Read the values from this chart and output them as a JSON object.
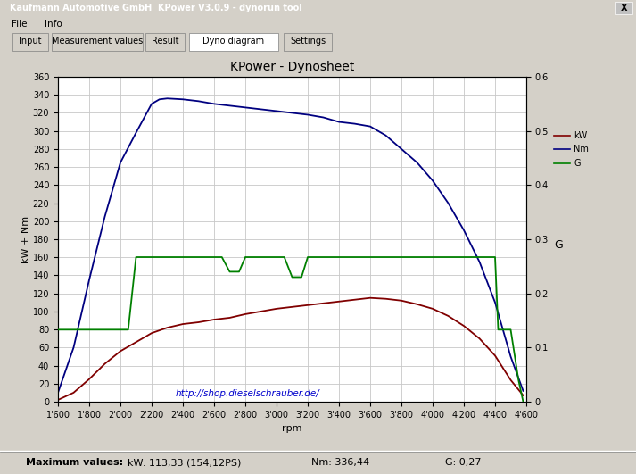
{
  "title": "KPower - Dynosheet",
  "xlabel": "rpm",
  "ylabel_left": "kW + Nm",
  "ylabel_right": "G",
  "url_text": "http://shop.dieselschrauber.de/",
  "window_title": "Kaufmann Automotive GmbH  KPower V3.0.9 - dynorun tool",
  "ylim_left": [
    0,
    360
  ],
  "ylim_right": [
    0,
    0.6
  ],
  "xlim": [
    1600,
    4600
  ],
  "xtick_labels": [
    "1'600",
    "1'800",
    "2'000",
    "2'200",
    "2'400",
    "2'600",
    "2'800",
    "3'000",
    "3'200",
    "3'400",
    "3'600",
    "3'800",
    "4'000",
    "4'200",
    "4'400",
    "4'600"
  ],
  "xtick_values": [
    1600,
    1800,
    2000,
    2200,
    2400,
    2600,
    2800,
    3000,
    3200,
    3400,
    3600,
    3800,
    4000,
    4200,
    4400,
    4600
  ],
  "ytick_left": [
    0,
    20,
    40,
    60,
    80,
    100,
    120,
    140,
    160,
    180,
    200,
    220,
    240,
    260,
    280,
    300,
    320,
    340,
    360
  ],
  "ytick_right": [
    0,
    0.1,
    0.2,
    0.3,
    0.4,
    0.5,
    0.6
  ],
  "bg_color": "#d4d0c8",
  "plot_bg_color": "#ffffff",
  "inner_bg": "#f0f0f0",
  "grid_color": "#c8c8c8",
  "nm_color": "#000080",
  "kw_color": "#800000",
  "g_color": "#008000",
  "legend_bg": "#d4d0c8",
  "titlebar_color": "#0a246a",
  "nm_rpm": [
    1600,
    1700,
    1800,
    1900,
    2000,
    2100,
    2200,
    2250,
    2300,
    2400,
    2500,
    2600,
    2700,
    2800,
    2900,
    3000,
    3100,
    3200,
    3300,
    3400,
    3500,
    3600,
    3700,
    3800,
    3900,
    4000,
    4100,
    4200,
    4300,
    4400,
    4500,
    4580
  ],
  "nm_vals": [
    10,
    60,
    135,
    205,
    265,
    298,
    330,
    335,
    336,
    335,
    333,
    330,
    328,
    326,
    324,
    322,
    320,
    318,
    315,
    310,
    308,
    305,
    295,
    280,
    265,
    245,
    220,
    190,
    155,
    110,
    50,
    12
  ],
  "kw_rpm": [
    1600,
    1700,
    1800,
    1900,
    2000,
    2100,
    2200,
    2300,
    2400,
    2500,
    2600,
    2700,
    2800,
    2900,
    3000,
    3100,
    3200,
    3300,
    3400,
    3500,
    3600,
    3700,
    3800,
    3900,
    4000,
    4100,
    4200,
    4300,
    4400,
    4500,
    4580
  ],
  "kw_vals": [
    2,
    10,
    25,
    42,
    56,
    66,
    76,
    82,
    86,
    88,
    91,
    93,
    97,
    100,
    103,
    105,
    107,
    109,
    111,
    113,
    115,
    114,
    112,
    108,
    103,
    95,
    84,
    70,
    51,
    24,
    7
  ],
  "g_rpm_detail": [
    1600,
    1700,
    1800,
    1900,
    2000,
    2050,
    2100,
    2150,
    2200,
    2250,
    2300,
    2350,
    2400,
    2500,
    2600,
    2650,
    2700,
    2720,
    2740,
    2760,
    2800,
    2850,
    2900,
    3000,
    3050,
    3100,
    3120,
    3140,
    3160,
    3200,
    3250,
    3300,
    3350,
    3400,
    3450,
    3500,
    3550,
    3600,
    3700,
    3800,
    3900,
    4000,
    4050,
    4100,
    4400,
    4420,
    4440,
    4500,
    4550,
    4580
  ],
  "g_vals_detail": [
    0.133,
    0.133,
    0.133,
    0.133,
    0.133,
    0.133,
    0.267,
    0.267,
    0.267,
    0.267,
    0.267,
    0.267,
    0.267,
    0.267,
    0.267,
    0.267,
    0.24,
    0.24,
    0.24,
    0.24,
    0.267,
    0.267,
    0.267,
    0.267,
    0.267,
    0.23,
    0.23,
    0.23,
    0.23,
    0.267,
    0.267,
    0.267,
    0.267,
    0.267,
    0.267,
    0.267,
    0.267,
    0.267,
    0.267,
    0.267,
    0.267,
    0.267,
    0.267,
    0.267,
    0.267,
    0.133,
    0.133,
    0.133,
    0.04,
    0.0
  ]
}
